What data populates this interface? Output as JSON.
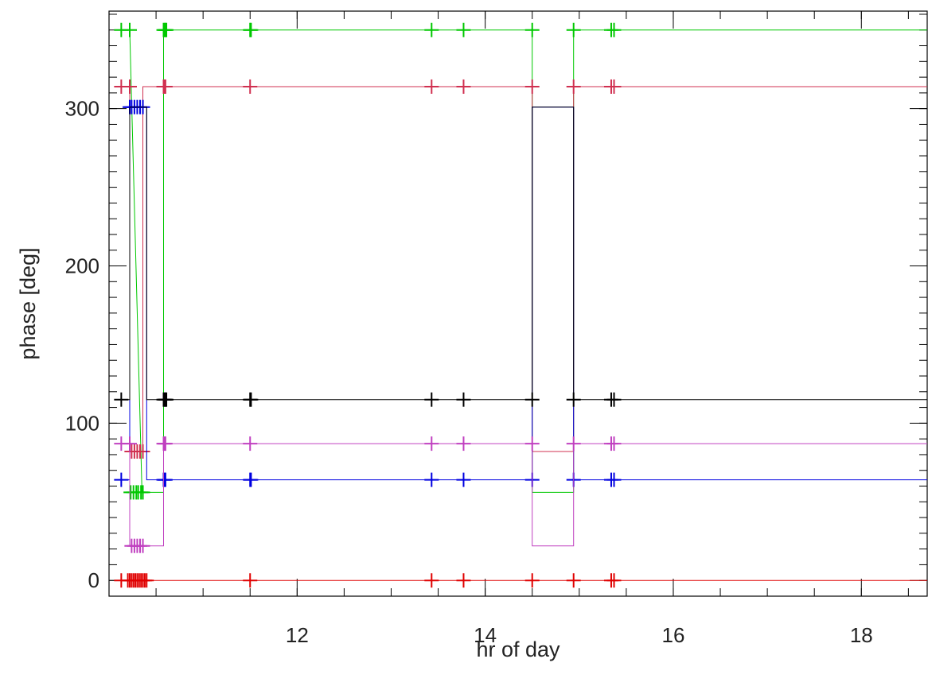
{
  "chart_data": {
    "type": "line",
    "title": "",
    "xlabel": "hr of day",
    "ylabel": "phase [deg]",
    "xlim": [
      10.0,
      18.7
    ],
    "ylim": [
      -10,
      362
    ],
    "x_ticks": [
      12,
      14,
      16,
      18
    ],
    "y_ticks": [
      0,
      100,
      200,
      300
    ],
    "grid": false,
    "series": [
      {
        "color": "#00c800",
        "segments": [
          {
            "x": [
              10.12,
              10.22,
              10.22,
              10.35,
              10.35,
              10.35,
              10.58,
              10.58,
              14.5,
              14.5,
              14.94,
              14.94,
              18.7
            ],
            "y": [
              350,
              350,
              350,
              56,
              56,
              56,
              56,
              350,
              350,
              56,
              56,
              350,
              350
            ]
          }
        ],
        "markers": {
          "x": [
            10.13,
            10.22,
            10.23,
            10.26,
            10.29,
            10.31,
            10.34,
            10.36,
            10.58,
            10.59,
            10.6,
            10.61,
            11.5,
            11.51,
            13.43,
            13.77,
            14.5,
            14.94,
            15.34,
            15.37
          ],
          "y": [
            350,
            350,
            56,
            56,
            56,
            56,
            56,
            56,
            350,
            350,
            350,
            350,
            350,
            350,
            350,
            350,
            350,
            350,
            350,
            350
          ]
        }
      },
      {
        "color": "#d03050",
        "segments": [
          {
            "x": [
              10.12,
              10.22,
              10.22,
              10.36,
              10.36,
              10.58,
              10.58,
              14.5,
              14.5,
              14.94,
              14.94,
              18.7
            ],
            "y": [
              314,
              314,
              82,
              82,
              314,
              314,
              314,
              314,
              82,
              82,
              314,
              314
            ]
          }
        ],
        "markers": {
          "x": [
            10.13,
            10.22,
            10.24,
            10.27,
            10.3,
            10.33,
            10.36,
            10.58,
            10.59,
            10.6,
            11.5,
            13.43,
            13.77,
            14.5,
            14.94,
            15.34,
            15.37
          ],
          "y": [
            314,
            314,
            82,
            82,
            82,
            82,
            82,
            314,
            314,
            314,
            314,
            314,
            314,
            314,
            314,
            314,
            314
          ]
        }
      },
      {
        "color": "#0000e0",
        "segments": [
          {
            "x": [
              10.12,
              10.22,
              10.22,
              10.4,
              10.4,
              10.58,
              10.58,
              14.5,
              14.5,
              14.94,
              14.94,
              18.7
            ],
            "y": [
              64,
              64,
              301,
              301,
              64,
              64,
              64,
              64,
              301,
              301,
              64,
              64
            ]
          }
        ],
        "markers": {
          "x": [
            10.13,
            10.22,
            10.24,
            10.27,
            10.3,
            10.33,
            10.36,
            10.58,
            10.59,
            10.6,
            11.5,
            11.51,
            13.43,
            13.77,
            14.5,
            14.94,
            15.34,
            15.37
          ],
          "y": [
            64,
            301,
            301,
            301,
            301,
            301,
            301,
            64,
            64,
            64,
            64,
            64,
            64,
            64,
            64,
            64,
            64,
            64
          ]
        }
      },
      {
        "color": "#000000",
        "segments": [
          {
            "x": [
              10.12,
              10.22,
              10.22,
              10.4,
              10.4,
              10.58,
              10.58,
              14.5,
              14.5,
              14.94,
              14.94,
              18.7
            ],
            "y": [
              115,
              115,
              301,
              301,
              115,
              115,
              115,
              115,
              301,
              301,
              115,
              115
            ]
          }
        ],
        "markers": {
          "x": [
            10.13,
            10.58,
            10.59,
            10.6,
            10.61,
            11.5,
            11.51,
            13.43,
            13.77,
            14.5,
            14.94,
            15.34,
            15.37
          ],
          "y": [
            115,
            115,
            115,
            115,
            115,
            115,
            115,
            115,
            115,
            115,
            115,
            115,
            115
          ]
        }
      },
      {
        "color": "#c040c0",
        "segments": [
          {
            "x": [
              10.12,
              10.22,
              10.22,
              10.36,
              10.36,
              10.58,
              10.58,
              14.5,
              14.5,
              14.94,
              14.94,
              18.7
            ],
            "y": [
              87,
              87,
              22,
              22,
              22,
              22,
              87,
              87,
              22,
              22,
              87,
              87
            ]
          }
        ],
        "markers": {
          "x": [
            10.13,
            10.22,
            10.24,
            10.27,
            10.3,
            10.33,
            10.36,
            10.58,
            10.59,
            10.6,
            11.5,
            13.43,
            13.77,
            14.5,
            14.94,
            15.34,
            15.37
          ],
          "y": [
            87,
            87,
            22,
            22,
            22,
            22,
            22,
            87,
            87,
            87,
            87,
            87,
            87,
            87,
            87,
            87,
            87
          ]
        }
      },
      {
        "color": "#e00000",
        "segments": [
          {
            "x": [
              10.12,
              18.7
            ],
            "y": [
              0,
              0
            ]
          }
        ],
        "markers": {
          "x": [
            10.13,
            10.2,
            10.22,
            10.24,
            10.26,
            10.28,
            10.3,
            10.32,
            10.34,
            10.36,
            10.38,
            10.4,
            11.5,
            13.43,
            13.77,
            14.5,
            14.94,
            15.34,
            15.37
          ],
          "y": [
            0,
            0,
            0,
            0,
            0,
            0,
            0,
            0,
            0,
            0,
            0,
            0,
            0,
            0,
            0,
            0,
            0,
            0,
            0
          ]
        }
      }
    ]
  }
}
